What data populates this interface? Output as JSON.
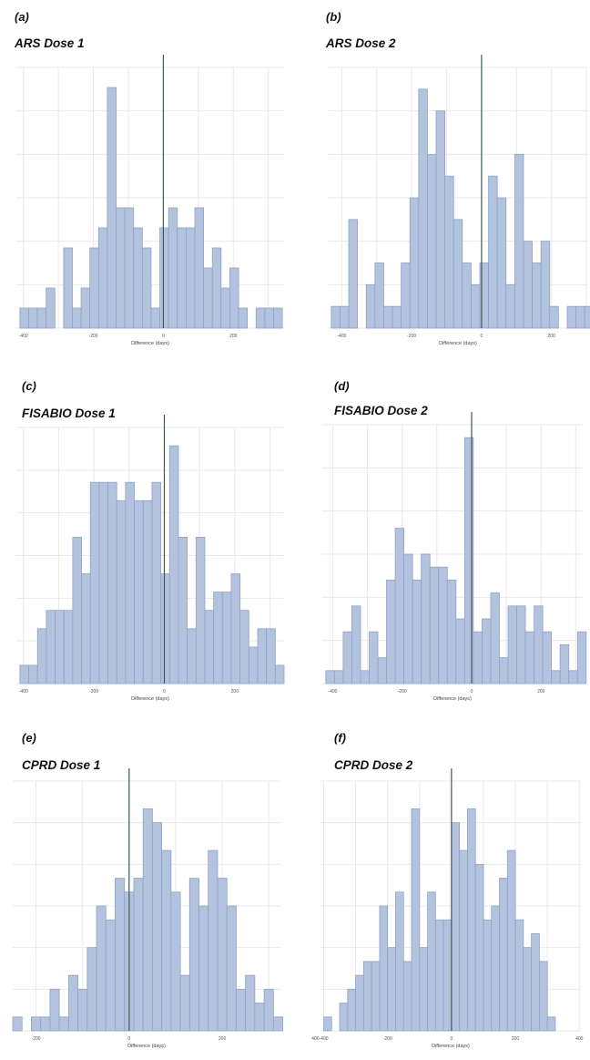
{
  "chart_data": [
    {
      "id": "a",
      "letter": "(a)",
      "title": "ARS Dose 1",
      "type": "bar",
      "xlabel": "Difference (days)",
      "ylabel": "",
      "grid": true,
      "xlim": [
        -420,
        345
      ],
      "x_ticks": [
        -400,
        -200,
        0,
        200
      ],
      "bin_start": -410,
      "bin_width": 25,
      "values": [
        1,
        1,
        1,
        2,
        0,
        4,
        1,
        2,
        4,
        5,
        12,
        6,
        6,
        5,
        4,
        1,
        5,
        6,
        5,
        5,
        6,
        3,
        4,
        2,
        3,
        1,
        0,
        1,
        1,
        1
      ],
      "ymax": 13
    },
    {
      "id": "b",
      "letter": "(b)",
      "title": "ARS Dose 2",
      "type": "bar",
      "xlabel": "Difference (days)",
      "ylabel": "",
      "grid": true,
      "xlim": [
        -440,
        305
      ],
      "x_ticks": [
        -400,
        -200,
        0,
        200
      ],
      "bin_start": -430,
      "bin_width": 25,
      "values": [
        1,
        1,
        5,
        0,
        2,
        3,
        1,
        1,
        3,
        6,
        11,
        8,
        10,
        7,
        5,
        3,
        2,
        3,
        7,
        6,
        2,
        8,
        4,
        3,
        4,
        1,
        0,
        1,
        1,
        1,
        1
      ],
      "ymax": 12
    },
    {
      "id": "c",
      "letter": "(c)",
      "title": "FISABIO Dose 1",
      "type": "bar",
      "xlabel": "Difference (days)",
      "ylabel": "",
      "grid": true,
      "xlim": [
        -420,
        340
      ],
      "x_ticks": [
        -400,
        -200,
        0,
        200
      ],
      "bin_start": -410,
      "bin_width": 25,
      "values": [
        1,
        1,
        3,
        4,
        4,
        4,
        8,
        6,
        11,
        11,
        11,
        10,
        11,
        10,
        10,
        11,
        6,
        13,
        8,
        3,
        8,
        4,
        5,
        5,
        6,
        4,
        2,
        3,
        3,
        1
      ],
      "ymax": 14
    },
    {
      "id": "d",
      "letter": "(d)",
      "title": "FISABIO Dose 2",
      "type": "bar",
      "xlabel": "Difference (days)",
      "ylabel": "",
      "grid": true,
      "xlim": [
        -430,
        320
      ],
      "x_ticks": [
        -400,
        -200,
        0,
        200
      ],
      "bin_start": -420,
      "bin_width": 25,
      "values": [
        1,
        1,
        4,
        6,
        1,
        4,
        2,
        8,
        12,
        10,
        8,
        10,
        9,
        9,
        8,
        5,
        19,
        4,
        5,
        7,
        2,
        6,
        6,
        4,
        6,
        4,
        1,
        3,
        1,
        4
      ],
      "ymax": 20
    },
    {
      "id": "e",
      "letter": "(e)",
      "title": "CPRD Dose 1",
      "type": "bar",
      "xlabel": "Difference (days)",
      "ylabel": "",
      "grid": true,
      "xlim": [
        -250,
        325
      ],
      "x_ticks": [
        -200,
        0,
        200,
        400
      ],
      "bin_start": -250,
      "bin_width": 20,
      "values": [
        1,
        0,
        1,
        1,
        3,
        1,
        4,
        3,
        6,
        9,
        8,
        11,
        10,
        11,
        16,
        15,
        13,
        10,
        4,
        11,
        9,
        13,
        11,
        9,
        3,
        4,
        2,
        3,
        1
      ],
      "ymax": 18
    },
    {
      "id": "f",
      "letter": "(f)",
      "title": "CPRD Dose 2",
      "type": "bar",
      "xlabel": "Difference (days)",
      "ylabel": "",
      "grid": true,
      "xlim": [
        -410,
        405
      ],
      "x_ticks": [
        -400,
        -200,
        0,
        200,
        400
      ],
      "bin_start": -400,
      "bin_width": 25,
      "values": [
        1,
        0,
        2,
        3,
        4,
        5,
        5,
        9,
        6,
        10,
        5,
        16,
        6,
        10,
        8,
        8,
        15,
        13,
        16,
        12,
        8,
        9,
        11,
        13,
        8,
        6,
        7,
        5,
        1
      ],
      "ymax": 18
    }
  ]
}
